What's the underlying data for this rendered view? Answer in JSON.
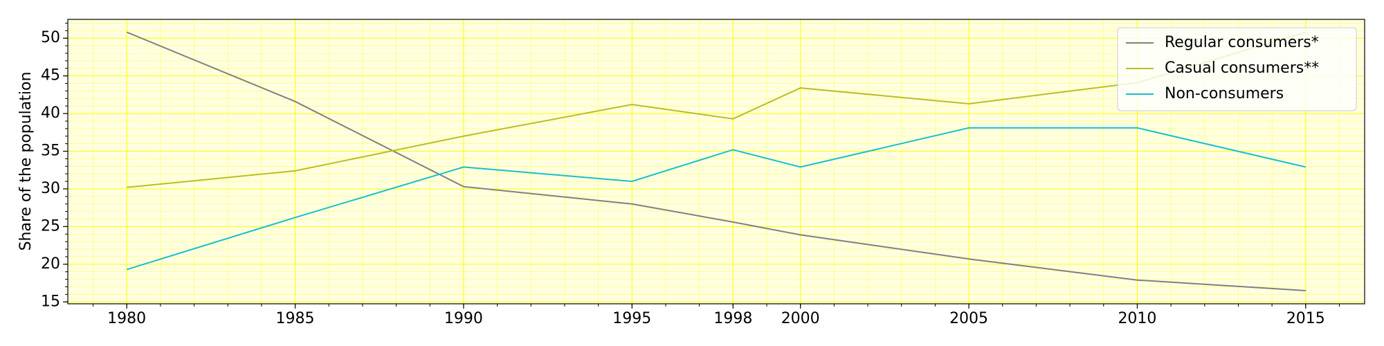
{
  "chart_data": {
    "type": "line",
    "y_label": "Share of the population",
    "x": [
      1980,
      1985,
      1990,
      1995,
      1998,
      2000,
      2005,
      2010,
      2015
    ],
    "series": [
      {
        "name": "Regular consumers*",
        "color": "#7f7f7f",
        "values": [
          50.8,
          41.6,
          30.3,
          28.0,
          25.6,
          23.9,
          20.7,
          17.9,
          16.5
        ]
      },
      {
        "name": "Casual consumers**",
        "color": "#bcbd22",
        "values": [
          30.2,
          32.4,
          37.0,
          41.2,
          39.3,
          43.4,
          41.3,
          44.1,
          50.8
        ]
      },
      {
        "name": "Non-consumers",
        "color": "#17becf",
        "values": [
          19.3,
          26.2,
          32.9,
          31.0,
          35.2,
          32.9,
          38.1,
          38.1,
          32.9
        ]
      }
    ],
    "xlim": [
      1978.25,
      2016.75
    ],
    "ylim": [
      14.75,
      52.5
    ],
    "xticks": [
      1980,
      1985,
      1990,
      1995,
      1998,
      2000,
      2005,
      2010,
      2015
    ],
    "yticks": [
      15,
      20,
      25,
      30,
      35,
      40,
      45,
      50
    ],
    "grid": true,
    "minor_grid": true,
    "x_minor_step": 1,
    "y_minor_step": 1,
    "grid_color": "#ffff00",
    "background": "#ffffe0",
    "legend": "upper right"
  }
}
